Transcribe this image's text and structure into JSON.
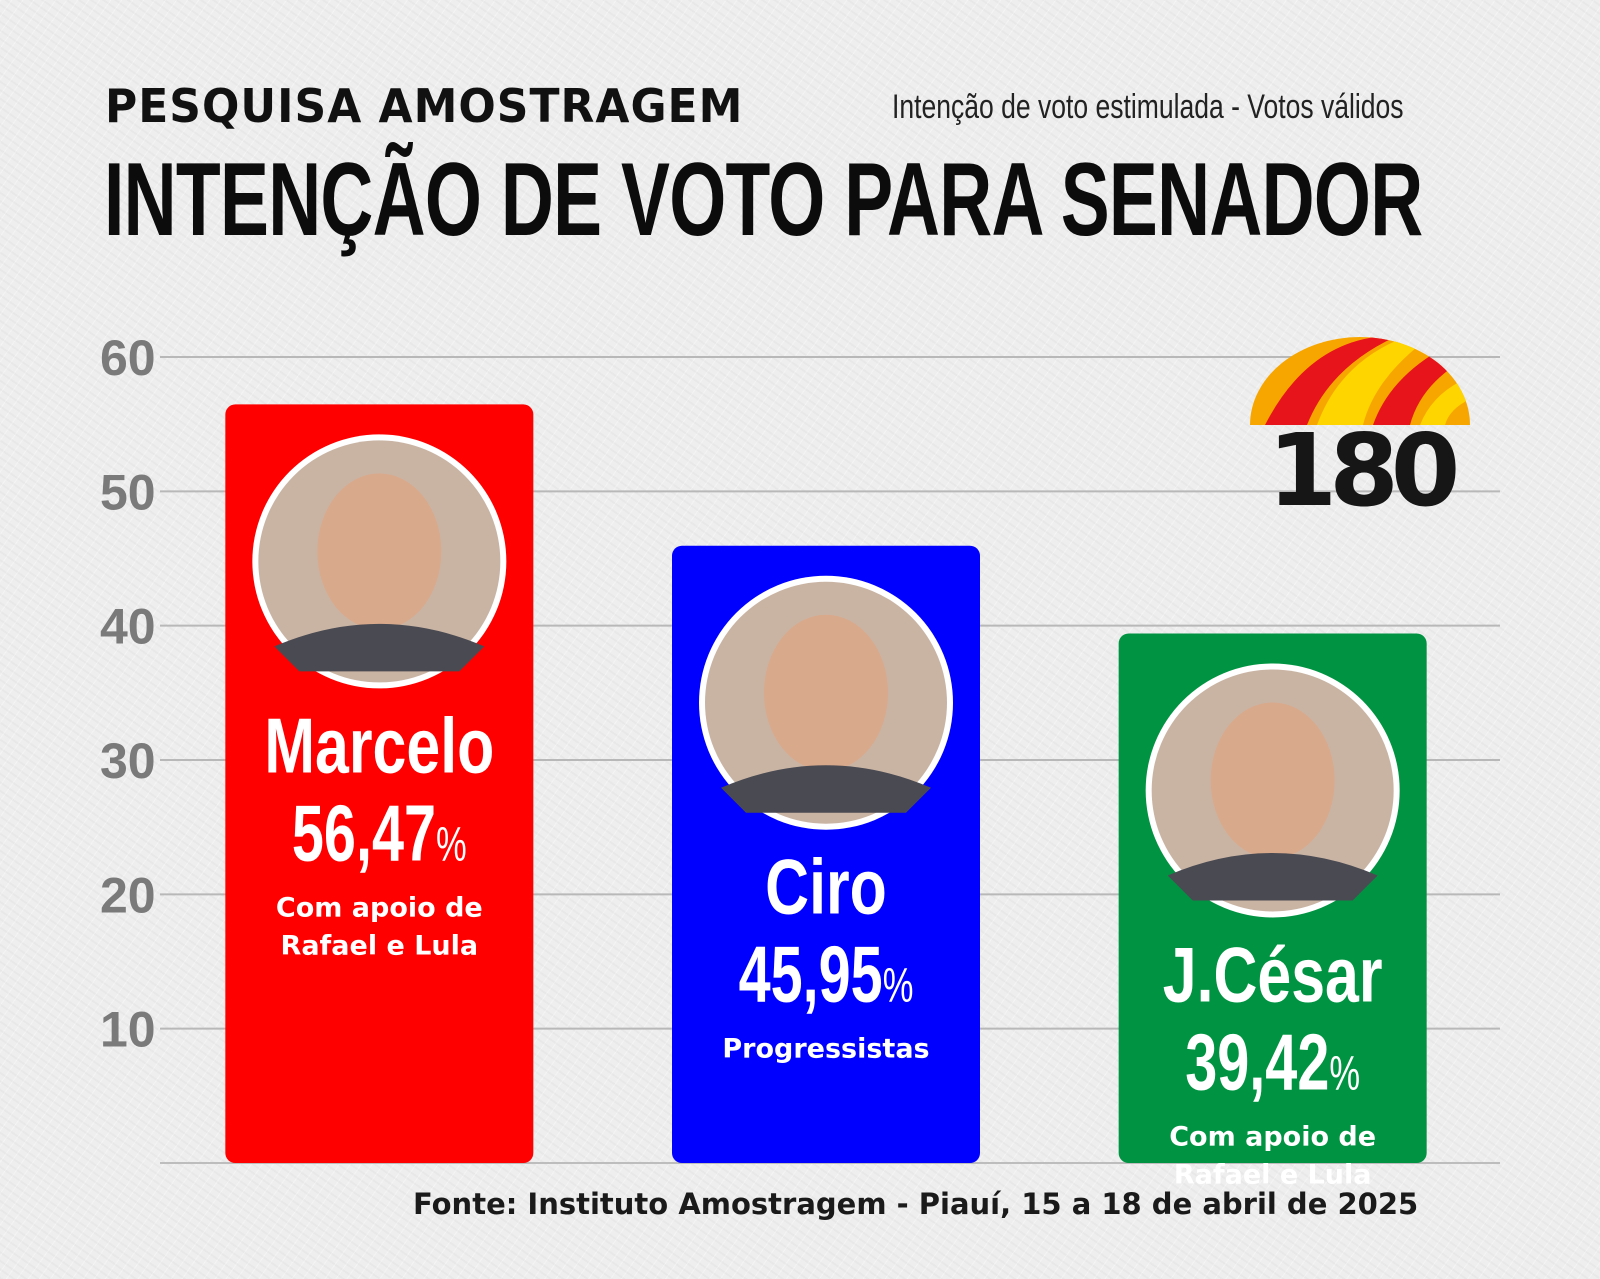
{
  "header": {
    "kicker": "PESQUISA AMOSTRAGEM",
    "subtitle": "Intenção de voto estimulada - Votos válidos",
    "title": "INTENÇÃO DE VOTO PARA SENADOR"
  },
  "logo": {
    "text": "180",
    "colors": [
      "#e8141b",
      "#f7a600",
      "#ffd500"
    ]
  },
  "source": "Fonte: Instituto Amostragem - Piauí, 15 a 18 de abril de 2025",
  "chart_data": {
    "type": "bar",
    "title": "INTENÇÃO DE VOTO PARA SENADOR",
    "subtitle": "Intenção de voto estimulada - Votos válidos",
    "xlabel": "",
    "ylabel": "",
    "ylim": [
      0,
      60
    ],
    "yticks": [
      10,
      20,
      30,
      40,
      50,
      60
    ],
    "grid": true,
    "categories": [
      "Marcelo",
      "Ciro",
      "J.César"
    ],
    "values": [
      56.47,
      45.95,
      39.42
    ],
    "value_labels": [
      "56,47",
      "45,95",
      "39,42"
    ],
    "unit": "%",
    "notes": [
      [
        "Com apoio de",
        "Rafael e  Lula"
      ],
      [
        "Progressistas"
      ],
      [
        "Com apoio de",
        "Rafael e  Lula"
      ]
    ],
    "colors": [
      "#fe0000",
      "#0000fe",
      "#009442"
    ]
  }
}
